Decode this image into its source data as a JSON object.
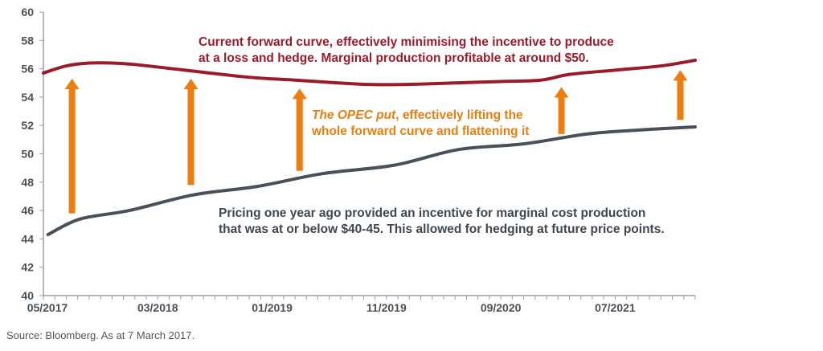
{
  "chart_data": {
    "type": "line",
    "title": "",
    "xlabel": "",
    "ylabel": "",
    "ylim": [
      40,
      60
    ],
    "yticks": [
      "40",
      "42",
      "44",
      "46",
      "48",
      "50",
      "52",
      "54",
      "56",
      "58",
      "60"
    ],
    "x_months_range": [
      0,
      57
    ],
    "xtick_labels": [
      {
        "month": 0,
        "label": "05/2017"
      },
      {
        "month": 10,
        "label": "03/2018"
      },
      {
        "month": 20,
        "label": "01/2019"
      },
      {
        "month": 30,
        "label": "11/2019"
      },
      {
        "month": 40,
        "label": "09/2020"
      },
      {
        "month": 50,
        "label": "07/2021"
      }
    ],
    "series": [
      {
        "name": "Current forward curve",
        "color": "#9b1b2a",
        "x": [
          0,
          2,
          4,
          6,
          8,
          12.4,
          18,
          22,
          28,
          32,
          36,
          40,
          43.5,
          46,
          50,
          54,
          57
        ],
        "values": [
          55.7,
          56.2,
          56.4,
          56.4,
          56.3,
          55.9,
          55.4,
          55.2,
          54.9,
          54.9,
          55.0,
          55.1,
          55.2,
          55.6,
          55.9,
          56.2,
          56.6
        ]
      },
      {
        "name": "Pricing one year ago",
        "color": "#4a5058",
        "x": [
          0.4,
          3.2,
          7.5,
          13.1,
          18.7,
          24.4,
          30.7,
          36.3,
          42.0,
          47.6,
          52.5,
          57
        ],
        "values": [
          44.3,
          45.4,
          46.0,
          47.1,
          47.7,
          48.6,
          49.2,
          50.3,
          50.7,
          51.4,
          51.7,
          51.9
        ]
      }
    ],
    "arrows": [
      {
        "month": 2.5,
        "from": 45.8,
        "to": 55.3
      },
      {
        "month": 12.9,
        "from": 47.8,
        "to": 55.3
      },
      {
        "month": 22.4,
        "from": 48.8,
        "to": 54.6
      },
      {
        "month": 45.3,
        "from": 51.4,
        "to": 54.7
      },
      {
        "month": 55.7,
        "from": 52.4,
        "to": 55.9
      }
    ],
    "arrow_color": "#ed7d0f",
    "annotations": {
      "red": [
        "Current forward curve, effectively minimising the incentive to produce",
        "at a loss and hedge. Marginal production profitable at around $50."
      ],
      "orange_italic": "The OPEC put",
      "orange_rest": ", effectively lifting the",
      "orange_line2": "whole forward curve and flattening it",
      "grey": [
        "Pricing one year ago provided an incentive for marginal cost production",
        "that was at or below $40-45. This allowed for hedging at future price points."
      ]
    }
  },
  "source": "Source: Bloomberg. As at 7 March 2017."
}
